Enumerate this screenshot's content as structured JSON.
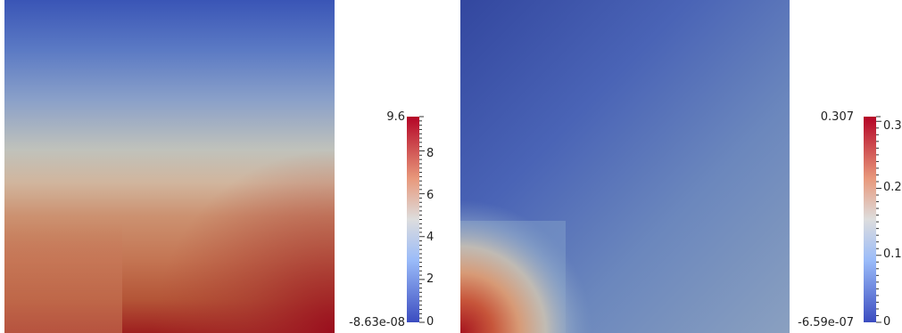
{
  "colormap": {
    "name": "cool-to-warm",
    "low": "#3b4cc0",
    "mid": "#dddddd",
    "high": "#b40426"
  },
  "plots": [
    {
      "id": "left",
      "colorbar": {
        "max_label": "9.6",
        "min_label": "-8.63e-08",
        "tick_labels": [
          "8",
          "6",
          "4",
          "2",
          "0"
        ],
        "max": 9.6,
        "min": 0
      }
    },
    {
      "id": "right",
      "colorbar": {
        "max_label": "0.307",
        "min_label": "-6.59e-07",
        "tick_labels": [
          "0.3",
          "0.2",
          "0.1",
          "0"
        ],
        "max": 0.307,
        "min": 0
      }
    }
  ]
}
